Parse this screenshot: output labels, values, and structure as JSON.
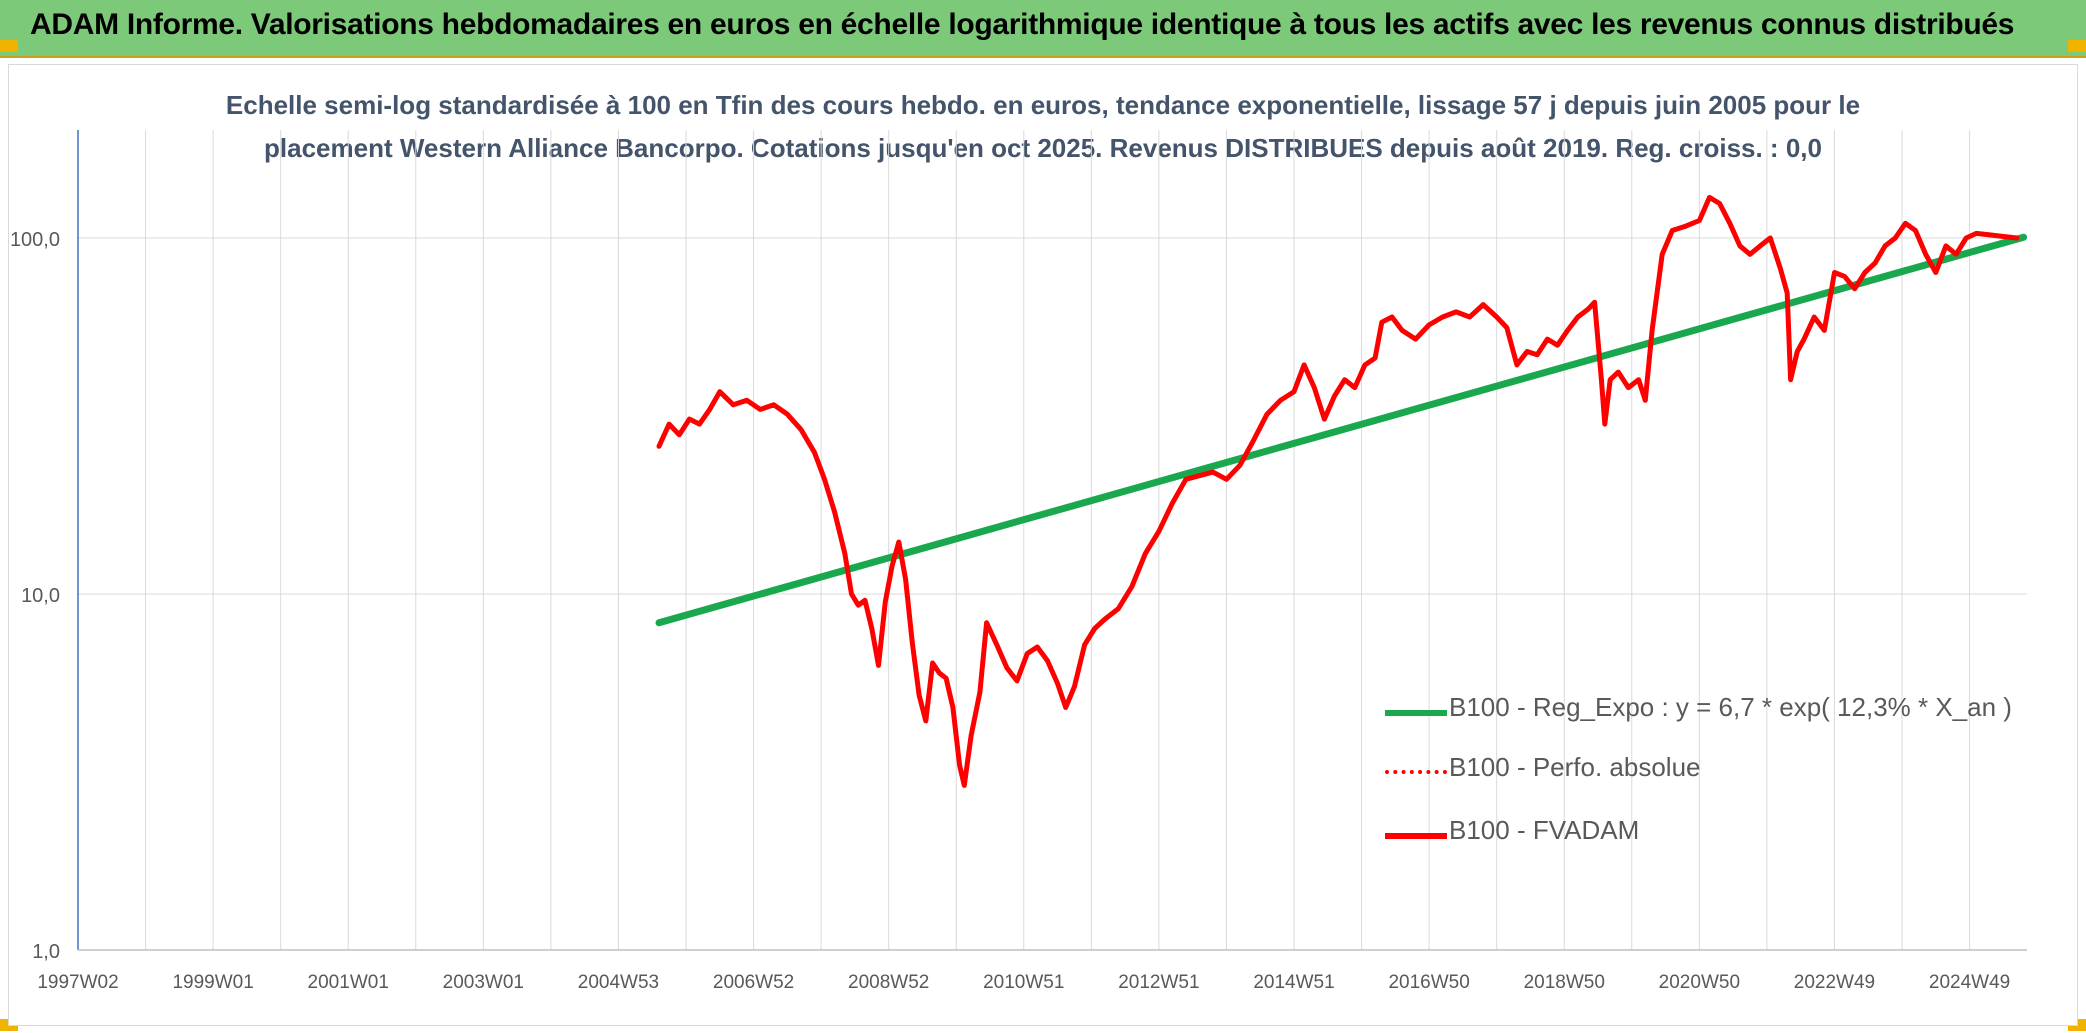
{
  "header": {
    "title": "ADAM Informe. Valorisations hebdomadaires en euros en échelle logarithmique identique à tous les actifs avec les revenus connus distribués"
  },
  "colors": {
    "banner": "#7dc97a",
    "trend": "#1aa84f",
    "fvadam": "#ff0000",
    "perfo": "#ff0000",
    "grid": "#d9d9d9",
    "title": "#44546a"
  },
  "chart_data": {
    "type": "line",
    "title_line1": "Echelle semi-log standardisée à 100 en Tfin des cours hebdo. en euros, tendance exponentielle, lissage 57 j depuis juin 2005 pour le",
    "title_line2": "placement Western Alliance Bancorpo. Cotations jusqu'en oct 2025. Revenus DISTRIBUES depuis août 2019. Reg. croiss. : 0,0",
    "y_scale": "log",
    "ylim": [
      1,
      180
    ],
    "y_ticks": [
      {
        "value": 1,
        "label": "1,0"
      },
      {
        "value": 10,
        "label": "10,0"
      },
      {
        "value": 100,
        "label": "100,0"
      }
    ],
    "xlim": [
      1997.0,
      2025.85
    ],
    "x_ticks": [
      {
        "value": 1997.0,
        "label": "1997W02"
      },
      {
        "value": 1999.0,
        "label": "1999W01"
      },
      {
        "value": 2001.0,
        "label": "2001W01"
      },
      {
        "value": 2003.0,
        "label": "2003W01"
      },
      {
        "value": 2005.0,
        "label": "2004W53"
      },
      {
        "value": 2007.0,
        "label": "2006W52"
      },
      {
        "value": 2009.0,
        "label": "2008W52"
      },
      {
        "value": 2011.0,
        "label": "2010W51"
      },
      {
        "value": 2013.0,
        "label": "2012W51"
      },
      {
        "value": 2015.0,
        "label": "2014W51"
      },
      {
        "value": 2017.0,
        "label": "2016W50"
      },
      {
        "value": 2019.0,
        "label": "2018W50"
      },
      {
        "value": 2021.0,
        "label": "2020W50"
      },
      {
        "value": 2023.0,
        "label": "2022W49"
      },
      {
        "value": 2025.0,
        "label": "2024W49"
      }
    ],
    "grid": true,
    "legend_position": "right-middle",
    "series": [
      {
        "name": "B100 - Reg_Expo : y = 6,7 * exp( 12,3% *  X_an )",
        "style": "solid",
        "points": [
          [
            2005.6,
            8.3
          ],
          [
            2025.8,
            100.5
          ]
        ]
      },
      {
        "name": "B100 - Perfo. absolue",
        "style": "dotted",
        "points": []
      },
      {
        "name": "B100 - FVADAM",
        "style": "solid",
        "points": [
          [
            2005.6,
            26
          ],
          [
            2005.75,
            30
          ],
          [
            2005.9,
            28
          ],
          [
            2006.05,
            31
          ],
          [
            2006.2,
            30
          ],
          [
            2006.35,
            33
          ],
          [
            2006.5,
            37
          ],
          [
            2006.7,
            34
          ],
          [
            2006.9,
            35
          ],
          [
            2007.1,
            33
          ],
          [
            2007.3,
            34
          ],
          [
            2007.5,
            32
          ],
          [
            2007.7,
            29
          ],
          [
            2007.9,
            25
          ],
          [
            2008.05,
            21
          ],
          [
            2008.2,
            17
          ],
          [
            2008.35,
            13
          ],
          [
            2008.45,
            10
          ],
          [
            2008.55,
            9.3
          ],
          [
            2008.65,
            9.6
          ],
          [
            2008.75,
            8
          ],
          [
            2008.85,
            6.3
          ],
          [
            2008.95,
            9.5
          ],
          [
            2009.05,
            12
          ],
          [
            2009.15,
            14
          ],
          [
            2009.25,
            11
          ],
          [
            2009.35,
            7.3
          ],
          [
            2009.45,
            5.2
          ],
          [
            2009.55,
            4.4
          ],
          [
            2009.65,
            6.4
          ],
          [
            2009.75,
            6.0
          ],
          [
            2009.85,
            5.8
          ],
          [
            2009.95,
            4.8
          ],
          [
            2010.05,
            3.3
          ],
          [
            2010.12,
            2.9
          ],
          [
            2010.22,
            4.0
          ],
          [
            2010.35,
            5.3
          ],
          [
            2010.45,
            8.3
          ],
          [
            2010.6,
            7.2
          ],
          [
            2010.75,
            6.2
          ],
          [
            2010.9,
            5.7
          ],
          [
            2011.05,
            6.8
          ],
          [
            2011.2,
            7.1
          ],
          [
            2011.35,
            6.5
          ],
          [
            2011.5,
            5.6
          ],
          [
            2011.62,
            4.8
          ],
          [
            2011.75,
            5.5
          ],
          [
            2011.9,
            7.2
          ],
          [
            2012.05,
            8.0
          ],
          [
            2012.2,
            8.5
          ],
          [
            2012.4,
            9.1
          ],
          [
            2012.6,
            10.5
          ],
          [
            2012.8,
            13
          ],
          [
            2013.0,
            15
          ],
          [
            2013.2,
            18
          ],
          [
            2013.4,
            21
          ],
          [
            2013.6,
            21.5
          ],
          [
            2013.8,
            22
          ],
          [
            2014.0,
            21
          ],
          [
            2014.2,
            23
          ],
          [
            2014.4,
            27
          ],
          [
            2014.6,
            32
          ],
          [
            2014.8,
            35
          ],
          [
            2015.0,
            37
          ],
          [
            2015.15,
            44
          ],
          [
            2015.3,
            38
          ],
          [
            2015.45,
            31
          ],
          [
            2015.6,
            36
          ],
          [
            2015.75,
            40
          ],
          [
            2015.9,
            38
          ],
          [
            2016.05,
            44
          ],
          [
            2016.2,
            46
          ],
          [
            2016.3,
            58
          ],
          [
            2016.45,
            60
          ],
          [
            2016.6,
            55
          ],
          [
            2016.8,
            52
          ],
          [
            2017.0,
            57
          ],
          [
            2017.2,
            60
          ],
          [
            2017.4,
            62
          ],
          [
            2017.6,
            60
          ],
          [
            2017.8,
            65
          ],
          [
            2018.0,
            60
          ],
          [
            2018.15,
            56
          ],
          [
            2018.3,
            44
          ],
          [
            2018.45,
            48
          ],
          [
            2018.6,
            47
          ],
          [
            2018.75,
            52
          ],
          [
            2018.9,
            50
          ],
          [
            2019.05,
            55
          ],
          [
            2019.2,
            60
          ],
          [
            2019.35,
            63
          ],
          [
            2019.45,
            66
          ],
          [
            2019.55,
            40
          ],
          [
            2019.6,
            30
          ],
          [
            2019.68,
            40
          ],
          [
            2019.8,
            42
          ],
          [
            2019.95,
            38
          ],
          [
            2020.1,
            40
          ],
          [
            2020.2,
            35
          ],
          [
            2020.3,
            55
          ],
          [
            2020.45,
            90
          ],
          [
            2020.6,
            105
          ],
          [
            2020.8,
            108
          ],
          [
            2021.0,
            112
          ],
          [
            2021.15,
            130
          ],
          [
            2021.3,
            125
          ],
          [
            2021.45,
            110
          ],
          [
            2021.6,
            95
          ],
          [
            2021.75,
            90
          ],
          [
            2021.9,
            95
          ],
          [
            2022.05,
            100
          ],
          [
            2022.2,
            82
          ],
          [
            2022.3,
            70
          ],
          [
            2022.35,
            40
          ],
          [
            2022.45,
            48
          ],
          [
            2022.55,
            52
          ],
          [
            2022.7,
            60
          ],
          [
            2022.85,
            55
          ],
          [
            2023.0,
            80
          ],
          [
            2023.15,
            78
          ],
          [
            2023.3,
            72
          ],
          [
            2023.45,
            80
          ],
          [
            2023.6,
            85
          ],
          [
            2023.75,
            95
          ],
          [
            2023.9,
            100
          ],
          [
            2024.05,
            110
          ],
          [
            2024.2,
            105
          ],
          [
            2024.35,
            90
          ],
          [
            2024.5,
            80
          ],
          [
            2024.65,
            95
          ],
          [
            2024.8,
            90
          ],
          [
            2024.95,
            100
          ],
          [
            2025.1,
            103
          ],
          [
            2025.3,
            102
          ],
          [
            2025.5,
            101
          ],
          [
            2025.7,
            100
          ]
        ]
      }
    ]
  }
}
